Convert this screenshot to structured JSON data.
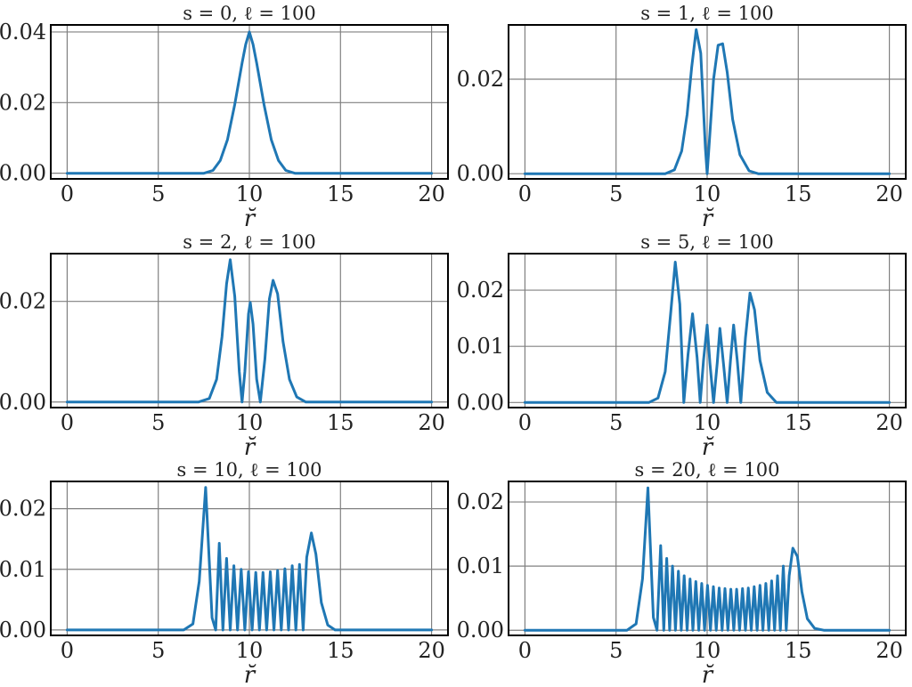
{
  "chart_data": [
    {
      "type": "line",
      "title": "s = 0, ℓ = 100",
      "xlabel": "r̆",
      "ylabel": "",
      "xlim": [
        -0.9,
        20.9
      ],
      "ylim": [
        -0.0016,
        0.042
      ],
      "xticks": [
        0,
        5,
        10,
        15,
        20
      ],
      "xtick_labels": [
        "0",
        "5",
        "10",
        "15",
        "20"
      ],
      "yticks": [
        0,
        0.02,
        0.04
      ],
      "ytick_labels": [
        "0.00",
        "0.02",
        "0.04"
      ],
      "grid": true,
      "series_color": "#1f77b4",
      "series": [
        {
          "x": [
            0,
            7.5,
            8.0,
            8.4,
            8.8,
            9.2,
            9.6,
            9.8,
            10.0,
            10.2,
            10.4,
            10.8,
            11.2,
            11.6,
            12.0,
            12.5,
            20
          ],
          "y": [
            0,
            0,
            0.0008,
            0.0036,
            0.0095,
            0.0195,
            0.0312,
            0.0365,
            0.04,
            0.0365,
            0.0312,
            0.0195,
            0.0095,
            0.0036,
            0.0008,
            0,
            0
          ]
        }
      ]
    },
    {
      "type": "line",
      "title": "s = 1, ℓ = 100",
      "xlabel": "r̆",
      "ylabel": "",
      "xlim": [
        -0.9,
        20.9
      ],
      "ylim": [
        -0.0011,
        0.0315
      ],
      "xticks": [
        0,
        5,
        10,
        15,
        20
      ],
      "xtick_labels": [
        "0",
        "5",
        "10",
        "15",
        "20"
      ],
      "yticks": [
        0,
        0.02
      ],
      "ytick_labels": [
        "0.00",
        "0.02"
      ],
      "grid": true,
      "series_color": "#1f77b4",
      "series": [
        {
          "x": [
            0,
            7.7,
            8.2,
            8.6,
            8.9,
            9.15,
            9.4,
            9.65,
            9.9,
            10.0,
            10.1,
            10.35,
            10.6,
            10.85,
            11.1,
            11.4,
            11.8,
            12.3,
            12.8,
            20
          ],
          "y": [
            0,
            0,
            0.0008,
            0.0048,
            0.0125,
            0.0225,
            0.0305,
            0.0255,
            0.0055,
            0,
            0.0055,
            0.02,
            0.0272,
            0.0275,
            0.0215,
            0.0115,
            0.004,
            0.0006,
            0,
            0
          ]
        }
      ]
    },
    {
      "type": "line",
      "title": "s = 2, ℓ = 100",
      "xlabel": "r̆",
      "ylabel": "",
      "xlim": [
        -0.9,
        20.9
      ],
      "ylim": [
        -0.0011,
        0.0295
      ],
      "xticks": [
        0,
        5,
        10,
        15,
        20
      ],
      "xtick_labels": [
        "0",
        "5",
        "10",
        "15",
        "20"
      ],
      "yticks": [
        0,
        0.02
      ],
      "ytick_labels": [
        "0.00",
        "0.02"
      ],
      "grid": true,
      "series_color": "#1f77b4",
      "series": [
        {
          "x": [
            0,
            7.2,
            7.8,
            8.2,
            8.5,
            8.75,
            8.95,
            9.2,
            9.45,
            9.6,
            9.75,
            9.95,
            10.05,
            10.2,
            10.4,
            10.6,
            10.85,
            11.1,
            11.3,
            11.55,
            11.85,
            12.2,
            12.6,
            13.1,
            20
          ],
          "y": [
            0,
            0,
            0.0007,
            0.0045,
            0.013,
            0.0235,
            0.0283,
            0.021,
            0.006,
            0,
            0.006,
            0.0175,
            0.0198,
            0.0155,
            0.0045,
            0,
            0.0085,
            0.0205,
            0.0242,
            0.0215,
            0.012,
            0.0045,
            0.001,
            0,
            0
          ]
        }
      ]
    },
    {
      "type": "line",
      "title": "s = 5, ℓ = 100",
      "xlabel": "r̆",
      "ylabel": "",
      "xlim": [
        -0.9,
        20.9
      ],
      "ylim": [
        -0.0009,
        0.0265
      ],
      "xticks": [
        0,
        5,
        10,
        15,
        20
      ],
      "xtick_labels": [
        "0",
        "5",
        "10",
        "15",
        "20"
      ],
      "yticks": [
        0,
        0.01,
        0.02
      ],
      "ytick_labels": [
        "0.00",
        "0.01",
        "0.02"
      ],
      "grid": true,
      "series_color": "#1f77b4",
      "series": [
        {
          "x": [
            0,
            6.8,
            7.3,
            7.7,
            8.0,
            8.25,
            8.5,
            8.72,
            8.95,
            9.2,
            9.45,
            9.62,
            9.8,
            10.0,
            10.15,
            10.35,
            10.55,
            10.7,
            10.9,
            11.1,
            11.28,
            11.45,
            11.65,
            11.85,
            12.1,
            12.35,
            12.6,
            12.9,
            13.3,
            13.8,
            20
          ],
          "y": [
            0,
            0,
            0.0008,
            0.0055,
            0.016,
            0.025,
            0.0175,
            0.0,
            0.0085,
            0.0158,
            0.008,
            0.0,
            0.0075,
            0.0138,
            0.007,
            0.0,
            0.007,
            0.0132,
            0.0068,
            0.0,
            0.0075,
            0.0138,
            0.0075,
            0.0,
            0.0115,
            0.0195,
            0.0165,
            0.0075,
            0.0018,
            0,
            0
          ]
        }
      ]
    },
    {
      "type": "line",
      "title": "s = 10, ℓ = 100",
      "xlabel": "r̆",
      "ylabel": "",
      "xlim": [
        -0.9,
        20.9
      ],
      "ylim": [
        -0.0009,
        0.0245
      ],
      "xticks": [
        0,
        5,
        10,
        15,
        20
      ],
      "xtick_labels": [
        "0",
        "5",
        "10",
        "15",
        "20"
      ],
      "yticks": [
        0,
        0.01,
        0.02
      ],
      "ytick_labels": [
        "0.00",
        "0.01",
        "0.02"
      ],
      "grid": true,
      "series_color": "#1f77b4",
      "series": [
        {
          "x": [
            0,
            6.4,
            6.9,
            7.25,
            7.6,
            7.95,
            8.15,
            8.35,
            8.55,
            8.75,
            8.95,
            9.15,
            9.35,
            9.55,
            9.75,
            9.95,
            10.15,
            10.35,
            10.55,
            10.75,
            10.95,
            11.15,
            11.35,
            11.55,
            11.75,
            11.95,
            12.15,
            12.35,
            12.55,
            12.75,
            12.95,
            13.15,
            13.4,
            13.65,
            13.95,
            14.3,
            14.7,
            20
          ],
          "y": [
            0,
            0,
            0.001,
            0.008,
            0.0235,
            0.002,
            0.0,
            0.0143,
            0.0,
            0.0118,
            0.0,
            0.0106,
            0.0,
            0.01,
            0.0,
            0.0096,
            0.0,
            0.0095,
            0.0,
            0.0095,
            0.0,
            0.0096,
            0.0,
            0.0098,
            0.0,
            0.0101,
            0.0,
            0.0106,
            0.0,
            0.0108,
            0.0,
            0.012,
            0.016,
            0.0125,
            0.0045,
            0.0008,
            0,
            0
          ]
        }
      ]
    },
    {
      "type": "line",
      "title": "s = 20, ℓ = 100",
      "xlabel": "r̆",
      "ylabel": "",
      "xlim": [
        -0.9,
        20.9
      ],
      "ylim": [
        -0.0008,
        0.0232
      ],
      "xticks": [
        0,
        5,
        10,
        15,
        20
      ],
      "xtick_labels": [
        "0",
        "5",
        "10",
        "15",
        "20"
      ],
      "yticks": [
        0,
        0.01,
        0.02
      ],
      "ytick_labels": [
        "0.00",
        "0.01",
        "0.02"
      ],
      "grid": true,
      "series_color": "#1f77b4",
      "series": [
        {
          "x": [
            0,
            5.6,
            6.1,
            6.45,
            6.75,
            7.05,
            7.25,
            7.45,
            7.62,
            7.78,
            7.94,
            8.1,
            8.26,
            8.42,
            8.58,
            8.74,
            8.9,
            9.06,
            9.22,
            9.38,
            9.54,
            9.7,
            9.86,
            10.02,
            10.18,
            10.34,
            10.5,
            10.66,
            10.82,
            10.98,
            11.14,
            11.3,
            11.46,
            11.62,
            11.78,
            11.94,
            12.1,
            12.26,
            12.42,
            12.58,
            12.74,
            12.9,
            13.06,
            13.22,
            13.38,
            13.54,
            13.7,
            13.86,
            14.02,
            14.18,
            14.34,
            14.5,
            14.7,
            14.95,
            15.2,
            15.5,
            15.9,
            16.4,
            20
          ],
          "y": [
            0,
            0,
            0.001,
            0.008,
            0.0222,
            0.002,
            0.0,
            0.0132,
            0.0,
            0.0112,
            0.0,
            0.01,
            0.0,
            0.0092,
            0.0,
            0.0085,
            0.0,
            0.008,
            0.0,
            0.0076,
            0.0,
            0.0073,
            0.0,
            0.007,
            0.0,
            0.0068,
            0.0,
            0.0066,
            0.0,
            0.0065,
            0.0,
            0.0064,
            0.0,
            0.0064,
            0.0,
            0.0065,
            0.0,
            0.0066,
            0.0,
            0.0068,
            0.0,
            0.007,
            0.0,
            0.0073,
            0.0,
            0.0077,
            0.0,
            0.0085,
            0.0,
            0.01,
            0.0,
            0.0085,
            0.0128,
            0.0115,
            0.006,
            0.0018,
            0.0003,
            0,
            0
          ]
        }
      ]
    }
  ]
}
